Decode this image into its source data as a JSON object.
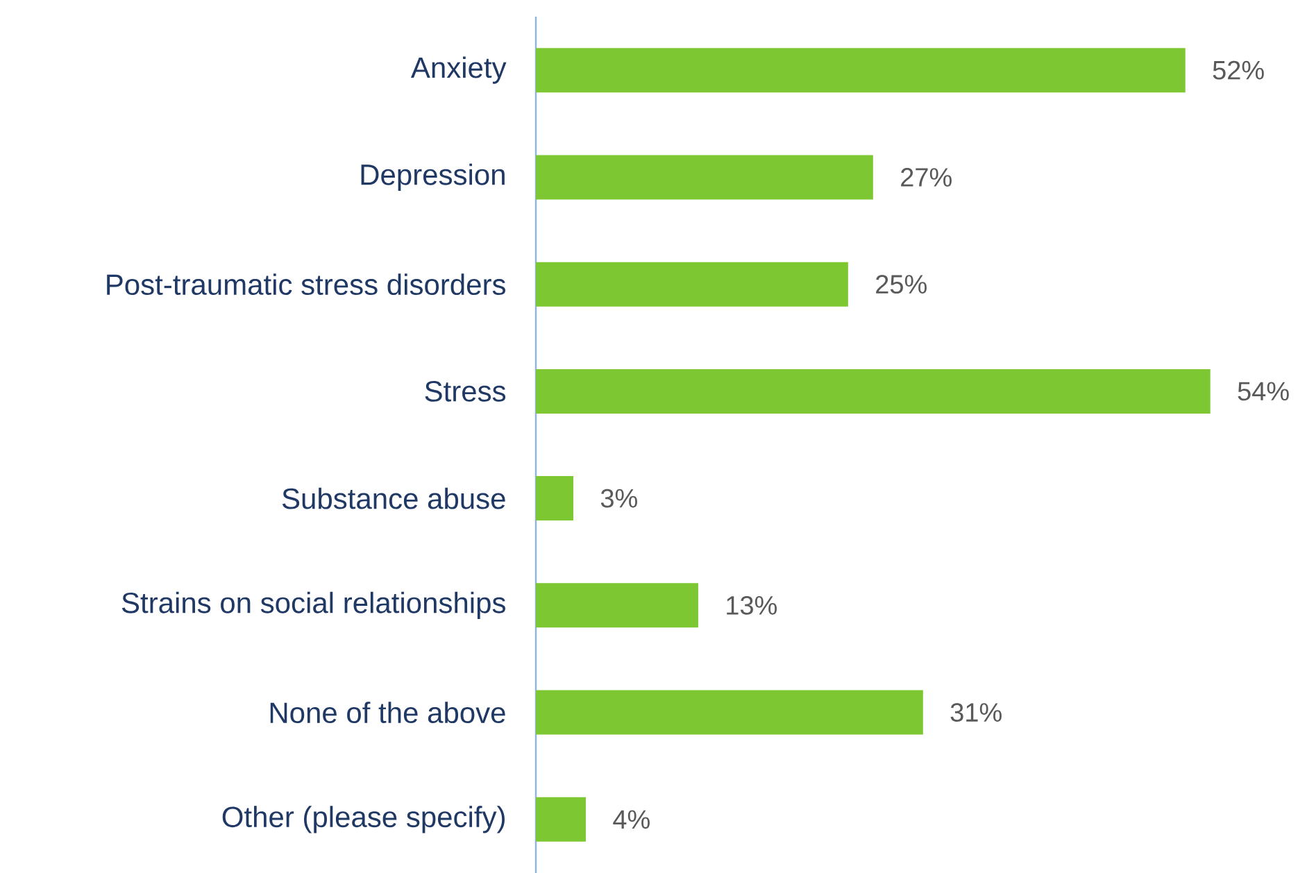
{
  "chart_data": {
    "type": "bar",
    "orientation": "horizontal",
    "categories": [
      "Anxiety",
      "Depression",
      "Post-traumatic stress disorders",
      "Stress",
      "Substance abuse",
      "Strains on social relationships",
      "None of the above",
      "Other (please specify)"
    ],
    "values": [
      52,
      27,
      25,
      54,
      3,
      13,
      31,
      4
    ],
    "value_labels": [
      "52%",
      "27%",
      "25%",
      "54%",
      "3%",
      "13%",
      "31%",
      "4%"
    ],
    "color": "#7dc832"
  }
}
